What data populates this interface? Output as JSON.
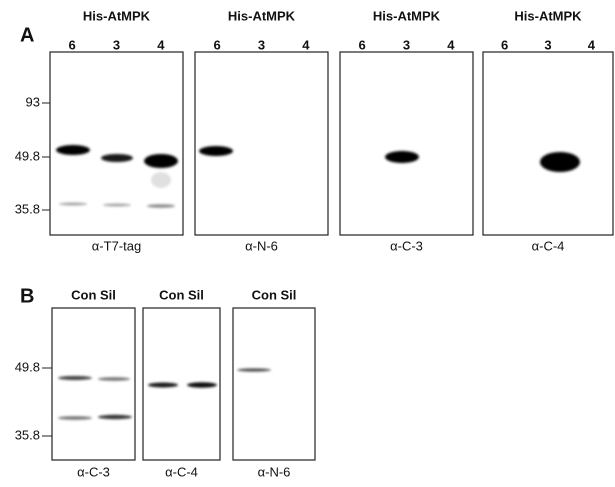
{
  "panels": [
    {
      "label": "A",
      "markers": [
        "93",
        "49.8",
        "35.8"
      ],
      "blots": [
        {
          "header": "His-AtMPK",
          "lanes": [
            "6",
            "3",
            "4"
          ],
          "antibody": "α-T7-tag"
        },
        {
          "header": "His-AtMPK",
          "lanes": [
            "6",
            "3",
            "4"
          ],
          "antibody": "α-N-6"
        },
        {
          "header": "His-AtMPK",
          "lanes": [
            "6",
            "3",
            "4"
          ],
          "antibody": "α-C-3"
        },
        {
          "header": "His-AtMPK",
          "lanes": [
            "6",
            "3",
            "4"
          ],
          "antibody": "α-C-4"
        }
      ]
    },
    {
      "label": "B",
      "markers": [
        "49.8",
        "35.8"
      ],
      "blots": [
        {
          "header": "Con Sil",
          "antibody": "α-C-3"
        },
        {
          "header": "Con Sil",
          "antibody": "α-C-4"
        },
        {
          "header": "Con Sil",
          "antibody": "α-N-6"
        }
      ]
    }
  ]
}
